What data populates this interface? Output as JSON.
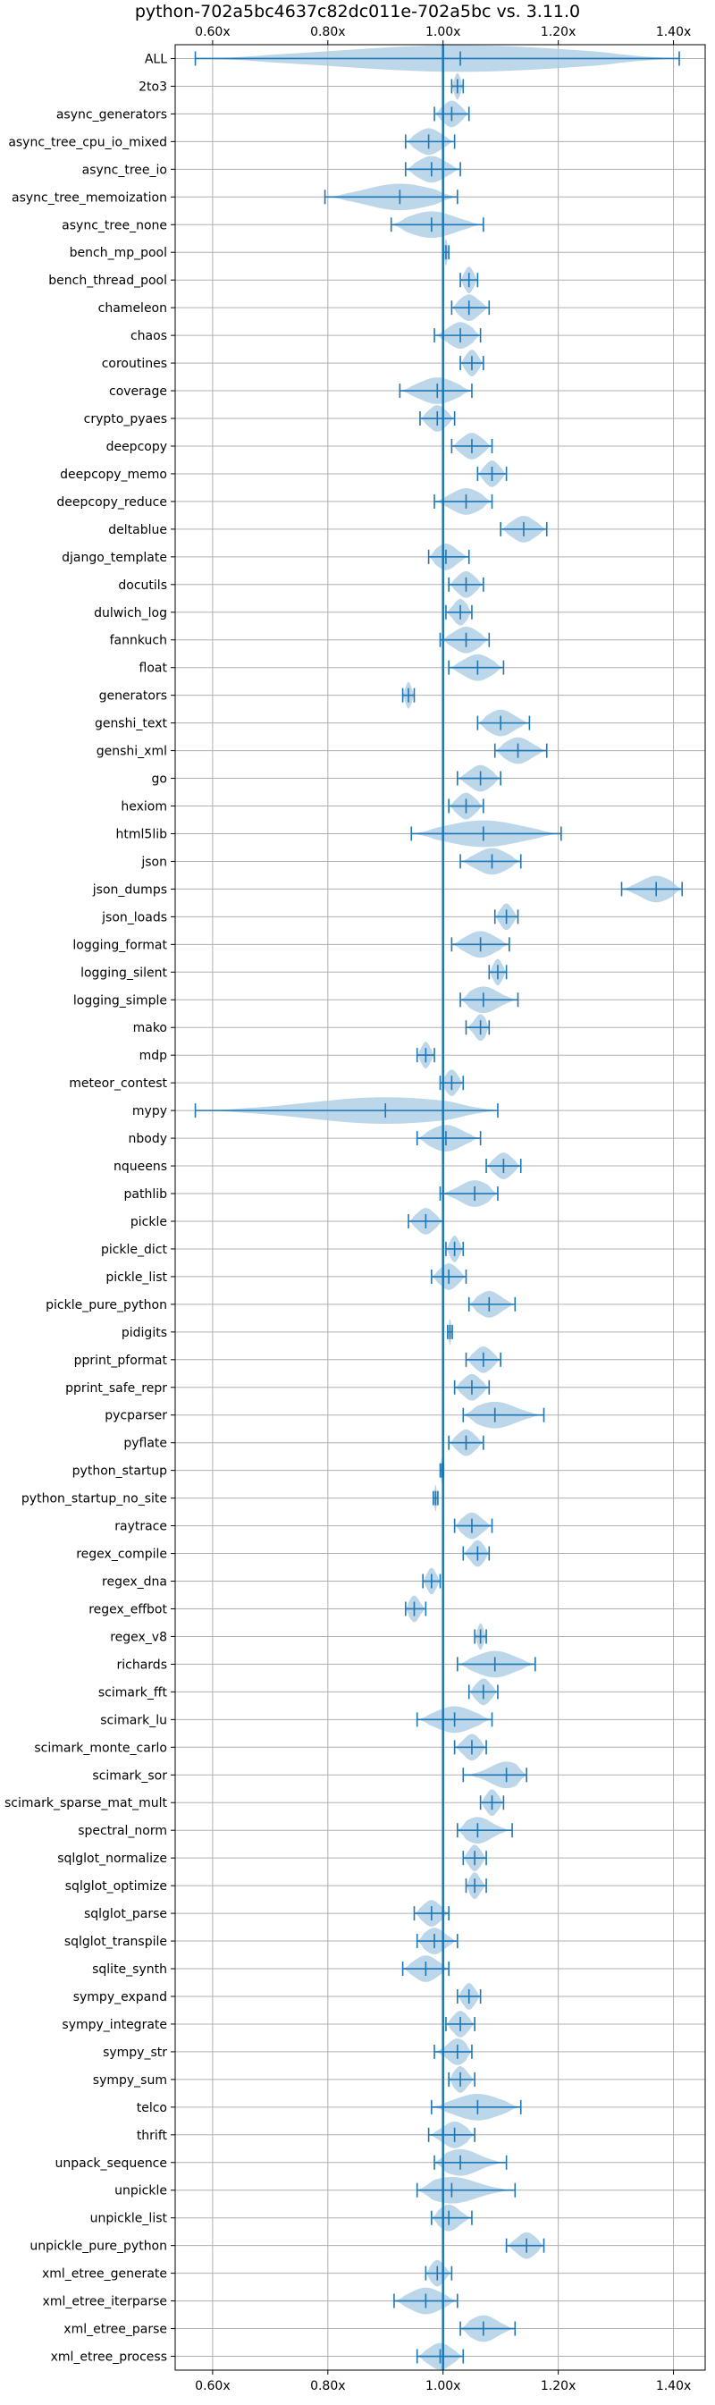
{
  "chart_data": {
    "type": "violin",
    "title": "python-702a5bc4637c82dc011e-702a5bc vs. 3.11.0",
    "xlabel": "",
    "ylabel": "",
    "xlim": [
      0.535,
      1.455
    ],
    "xticks": [
      0.6,
      0.8,
      1.0,
      1.2,
      1.4
    ],
    "xtick_labels": [
      "0.60x",
      "0.80x",
      "1.00x",
      "1.20x",
      "1.40x"
    ],
    "reference_line": 1.0,
    "grid": true,
    "colors": {
      "violin": "#a6c8e3",
      "line": "#1f77b4"
    },
    "benchmarks": [
      {
        "name": "ALL",
        "min": 0.57,
        "median": 1.03,
        "max": 1.41
      },
      {
        "name": "2to3",
        "min": 1.015,
        "median": 1.025,
        "max": 1.035
      },
      {
        "name": "async_generators",
        "min": 0.985,
        "median": 1.015,
        "max": 1.045
      },
      {
        "name": "async_tree_cpu_io_mixed",
        "min": 0.935,
        "median": 0.975,
        "max": 1.02
      },
      {
        "name": "async_tree_io",
        "min": 0.935,
        "median": 0.98,
        "max": 1.03
      },
      {
        "name": "async_tree_memoization",
        "min": 0.795,
        "median": 0.925,
        "max": 1.025
      },
      {
        "name": "async_tree_none",
        "min": 0.91,
        "median": 0.98,
        "max": 1.07
      },
      {
        "name": "bench_mp_pool",
        "min": 1.0,
        "median": 1.005,
        "max": 1.01
      },
      {
        "name": "bench_thread_pool",
        "min": 1.03,
        "median": 1.045,
        "max": 1.06
      },
      {
        "name": "chameleon",
        "min": 1.015,
        "median": 1.045,
        "max": 1.08
      },
      {
        "name": "chaos",
        "min": 0.985,
        "median": 1.03,
        "max": 1.065
      },
      {
        "name": "coroutines",
        "min": 1.03,
        "median": 1.05,
        "max": 1.07
      },
      {
        "name": "coverage",
        "min": 0.925,
        "median": 0.99,
        "max": 1.05
      },
      {
        "name": "crypto_pyaes",
        "min": 0.96,
        "median": 0.99,
        "max": 1.02
      },
      {
        "name": "deepcopy",
        "min": 1.015,
        "median": 1.05,
        "max": 1.085
      },
      {
        "name": "deepcopy_memo",
        "min": 1.06,
        "median": 1.085,
        "max": 1.11
      },
      {
        "name": "deepcopy_reduce",
        "min": 0.985,
        "median": 1.04,
        "max": 1.085
      },
      {
        "name": "deltablue",
        "min": 1.1,
        "median": 1.14,
        "max": 1.18
      },
      {
        "name": "django_template",
        "min": 0.975,
        "median": 1.005,
        "max": 1.045
      },
      {
        "name": "docutils",
        "min": 1.01,
        "median": 1.04,
        "max": 1.07
      },
      {
        "name": "dulwich_log",
        "min": 1.005,
        "median": 1.03,
        "max": 1.05
      },
      {
        "name": "fannkuch",
        "min": 0.995,
        "median": 1.04,
        "max": 1.08
      },
      {
        "name": "float",
        "min": 1.01,
        "median": 1.06,
        "max": 1.105
      },
      {
        "name": "generators",
        "min": 0.93,
        "median": 0.94,
        "max": 0.95
      },
      {
        "name": "genshi_text",
        "min": 1.06,
        "median": 1.1,
        "max": 1.15
      },
      {
        "name": "genshi_xml",
        "min": 1.09,
        "median": 1.13,
        "max": 1.18
      },
      {
        "name": "go",
        "min": 1.025,
        "median": 1.065,
        "max": 1.1
      },
      {
        "name": "hexiom",
        "min": 1.01,
        "median": 1.04,
        "max": 1.07
      },
      {
        "name": "html5lib",
        "min": 0.945,
        "median": 1.07,
        "max": 1.205
      },
      {
        "name": "json",
        "min": 1.03,
        "median": 1.085,
        "max": 1.135
      },
      {
        "name": "json_dumps",
        "min": 1.31,
        "median": 1.37,
        "max": 1.415
      },
      {
        "name": "json_loads",
        "min": 1.09,
        "median": 1.11,
        "max": 1.13
      },
      {
        "name": "logging_format",
        "min": 1.015,
        "median": 1.065,
        "max": 1.115
      },
      {
        "name": "logging_silent",
        "min": 1.08,
        "median": 1.095,
        "max": 1.11
      },
      {
        "name": "logging_simple",
        "min": 1.03,
        "median": 1.07,
        "max": 1.13
      },
      {
        "name": "mako",
        "min": 1.04,
        "median": 1.065,
        "max": 1.08
      },
      {
        "name": "mdp",
        "min": 0.955,
        "median": 0.97,
        "max": 0.985
      },
      {
        "name": "meteor_contest",
        "min": 0.995,
        "median": 1.015,
        "max": 1.035
      },
      {
        "name": "mypy",
        "min": 0.57,
        "median": 0.9,
        "max": 1.095
      },
      {
        "name": "nbody",
        "min": 0.955,
        "median": 1.005,
        "max": 1.065
      },
      {
        "name": "nqueens",
        "min": 1.075,
        "median": 1.105,
        "max": 1.135
      },
      {
        "name": "pathlib",
        "min": 0.995,
        "median": 1.055,
        "max": 1.095
      },
      {
        "name": "pickle",
        "min": 0.94,
        "median": 0.97,
        "max": 1.0
      },
      {
        "name": "pickle_dict",
        "min": 1.005,
        "median": 1.02,
        "max": 1.035
      },
      {
        "name": "pickle_list",
        "min": 0.98,
        "median": 1.01,
        "max": 1.04
      },
      {
        "name": "pickle_pure_python",
        "min": 1.045,
        "median": 1.08,
        "max": 1.125
      },
      {
        "name": "pidigits",
        "min": 1.008,
        "median": 1.012,
        "max": 1.016
      },
      {
        "name": "pprint_pformat",
        "min": 1.04,
        "median": 1.07,
        "max": 1.1
      },
      {
        "name": "pprint_safe_repr",
        "min": 1.02,
        "median": 1.05,
        "max": 1.08
      },
      {
        "name": "pycparser",
        "min": 1.035,
        "median": 1.09,
        "max": 1.175
      },
      {
        "name": "pyflate",
        "min": 1.01,
        "median": 1.04,
        "max": 1.07
      },
      {
        "name": "python_startup",
        "min": 0.995,
        "median": 0.998,
        "max": 1.001
      },
      {
        "name": "python_startup_no_site",
        "min": 0.983,
        "median": 0.987,
        "max": 0.991
      },
      {
        "name": "raytrace",
        "min": 1.02,
        "median": 1.05,
        "max": 1.085
      },
      {
        "name": "regex_compile",
        "min": 1.035,
        "median": 1.06,
        "max": 1.08
      },
      {
        "name": "regex_dna",
        "min": 0.965,
        "median": 0.98,
        "max": 0.995
      },
      {
        "name": "regex_effbot",
        "min": 0.935,
        "median": 0.95,
        "max": 0.97
      },
      {
        "name": "regex_v8",
        "min": 1.055,
        "median": 1.065,
        "max": 1.075
      },
      {
        "name": "richards",
        "min": 1.025,
        "median": 1.09,
        "max": 1.16
      },
      {
        "name": "scimark_fft",
        "min": 1.045,
        "median": 1.07,
        "max": 1.095
      },
      {
        "name": "scimark_lu",
        "min": 0.955,
        "median": 1.02,
        "max": 1.085
      },
      {
        "name": "scimark_monte_carlo",
        "min": 1.02,
        "median": 1.05,
        "max": 1.075
      },
      {
        "name": "scimark_sor",
        "min": 1.035,
        "median": 1.11,
        "max": 1.145
      },
      {
        "name": "scimark_sparse_mat_mult",
        "min": 1.065,
        "median": 1.085,
        "max": 1.105
      },
      {
        "name": "spectral_norm",
        "min": 1.025,
        "median": 1.06,
        "max": 1.12
      },
      {
        "name": "sqlglot_normalize",
        "min": 1.035,
        "median": 1.055,
        "max": 1.075
      },
      {
        "name": "sqlglot_optimize",
        "min": 1.04,
        "median": 1.055,
        "max": 1.075
      },
      {
        "name": "sqlglot_parse",
        "min": 0.95,
        "median": 0.98,
        "max": 1.01
      },
      {
        "name": "sqlglot_transpile",
        "min": 0.955,
        "median": 0.985,
        "max": 1.025
      },
      {
        "name": "sqlite_synth",
        "min": 0.93,
        "median": 0.97,
        "max": 1.01
      },
      {
        "name": "sympy_expand",
        "min": 1.025,
        "median": 1.045,
        "max": 1.065
      },
      {
        "name": "sympy_integrate",
        "min": 1.005,
        "median": 1.03,
        "max": 1.055
      },
      {
        "name": "sympy_str",
        "min": 0.985,
        "median": 1.025,
        "max": 1.05
      },
      {
        "name": "sympy_sum",
        "min": 1.01,
        "median": 1.03,
        "max": 1.055
      },
      {
        "name": "telco",
        "min": 0.98,
        "median": 1.06,
        "max": 1.135
      },
      {
        "name": "thrift",
        "min": 0.975,
        "median": 1.02,
        "max": 1.055
      },
      {
        "name": "unpack_sequence",
        "min": 0.985,
        "median": 1.03,
        "max": 1.11
      },
      {
        "name": "unpickle",
        "min": 0.955,
        "median": 1.015,
        "max": 1.125
      },
      {
        "name": "unpickle_list",
        "min": 0.98,
        "median": 1.01,
        "max": 1.05
      },
      {
        "name": "unpickle_pure_python",
        "min": 1.11,
        "median": 1.145,
        "max": 1.175
      },
      {
        "name": "xml_etree_generate",
        "min": 0.97,
        "median": 0.99,
        "max": 1.015
      },
      {
        "name": "xml_etree_iterparse",
        "min": 0.915,
        "median": 0.97,
        "max": 1.025
      },
      {
        "name": "xml_etree_parse",
        "min": 1.03,
        "median": 1.07,
        "max": 1.125
      },
      {
        "name": "xml_etree_process",
        "min": 0.955,
        "median": 0.995,
        "max": 1.035
      }
    ]
  }
}
